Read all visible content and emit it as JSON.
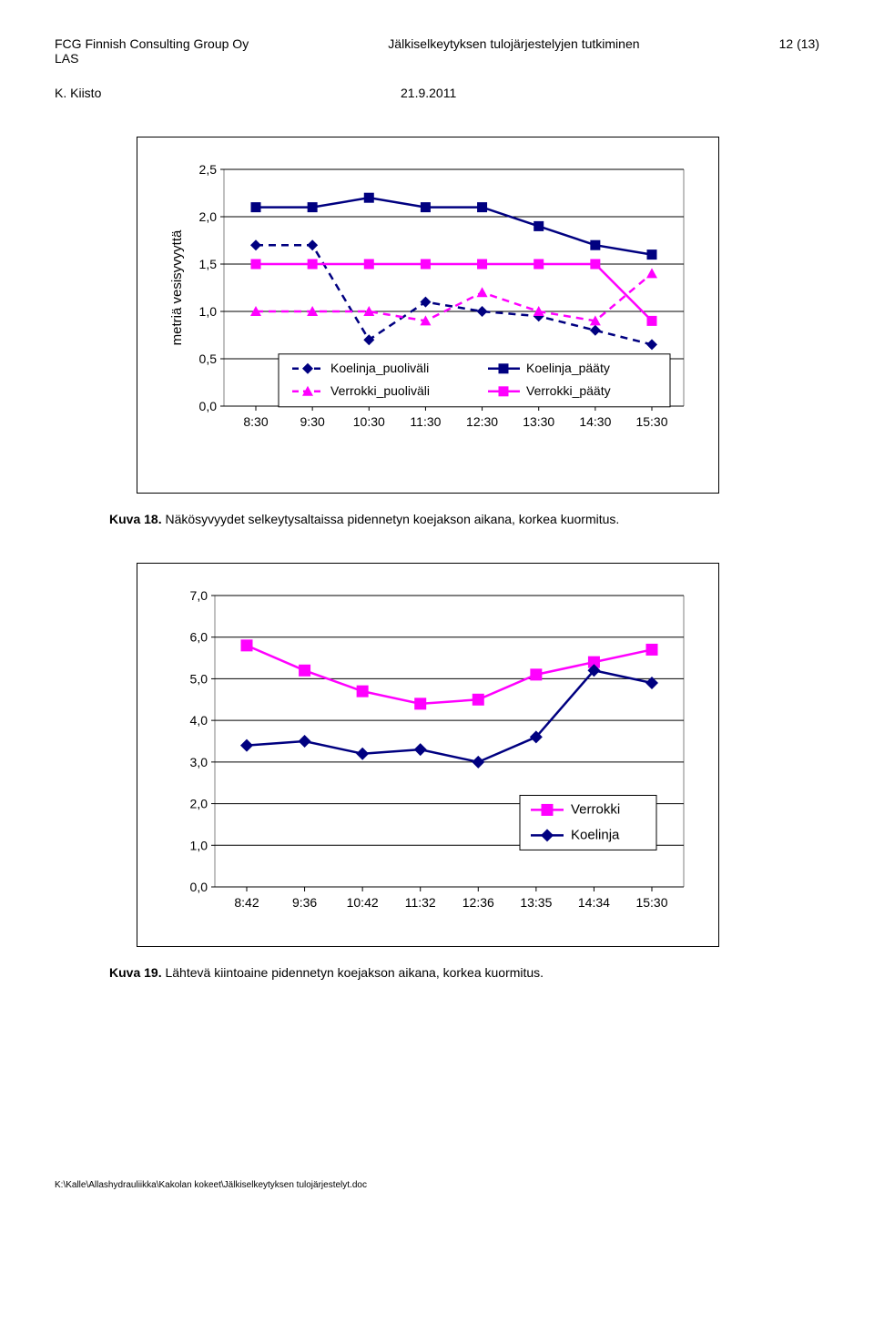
{
  "header": {
    "org": "FCG Finnish Consulting Group Oy",
    "org2": "LAS",
    "title": "Jälkiselkeytyksen tulojärjestelyjen tutkiminen",
    "page": "12 (13)",
    "author": "K. Kiisto",
    "date": "21.9.2011"
  },
  "chart1": {
    "type": "line",
    "ylabel": "metriä vesisyvyyttä",
    "yticks": [
      "0,0",
      "0,5",
      "1,0",
      "1,5",
      "2,0",
      "2,5"
    ],
    "ylim": [
      0,
      2.5
    ],
    "xcats": [
      "8:30",
      "9:30",
      "10:30",
      "11:30",
      "12:30",
      "13:30",
      "14:30",
      "15:30"
    ],
    "legend": [
      {
        "label": "Koelinja_puoliväli",
        "color": "#000080",
        "dash": true,
        "marker": "diamond"
      },
      {
        "label": "Koelinja_pääty",
        "color": "#000080",
        "dash": false,
        "marker": "square"
      },
      {
        "label": "Verrokki_puoliväli",
        "color": "#ff00ff",
        "dash": true,
        "marker": "triangle"
      },
      {
        "label": "Verrokki_pääty",
        "color": "#ff00ff",
        "dash": false,
        "marker": "square"
      }
    ],
    "series": {
      "koelinja_puolivali": {
        "color": "#000080",
        "dash": true,
        "marker": "diamond",
        "y": [
          1.7,
          1.7,
          0.7,
          1.1,
          1.0,
          0.95,
          0.8,
          0.65
        ]
      },
      "koelinja_paaty": {
        "color": "#000080",
        "dash": false,
        "marker": "square",
        "y": [
          2.1,
          2.1,
          2.2,
          2.1,
          2.1,
          1.9,
          1.7,
          1.6
        ]
      },
      "verrokki_puolivali": {
        "color": "#ff00ff",
        "dash": true,
        "marker": "triangle",
        "y": [
          1.0,
          1.0,
          1.0,
          0.9,
          1.2,
          1.0,
          0.9,
          1.4
        ]
      },
      "verrokki_paaty": {
        "color": "#ff00ff",
        "dash": false,
        "marker": "square",
        "y": [
          1.5,
          1.5,
          1.5,
          1.5,
          1.5,
          1.5,
          1.5,
          0.9
        ]
      }
    },
    "tick_font": 14,
    "label_font": 15,
    "grid_color": "#000000",
    "bg": "#ffffff"
  },
  "caption1_b": "Kuva 18.",
  "caption1": " Näkösyvyydet selkeytysaltaissa pidennetyn koejakson aikana, korkea kuormitus.",
  "chart2": {
    "type": "line",
    "yticks": [
      "0,0",
      "1,0",
      "2,0",
      "3,0",
      "4,0",
      "5,0",
      "6,0",
      "7,0"
    ],
    "ylim": [
      0,
      7
    ],
    "xcats": [
      "8:42",
      "9:36",
      "10:42",
      "11:32",
      "12:36",
      "13:35",
      "14:34",
      "15:30"
    ],
    "legend": [
      {
        "label": "Verrokki",
        "color": "#ff00ff",
        "marker": "square"
      },
      {
        "label": "Koelinja",
        "color": "#000080",
        "marker": "diamond"
      }
    ],
    "series": {
      "verrokki": {
        "color": "#ff00ff",
        "marker": "square",
        "y": [
          5.8,
          5.2,
          4.7,
          4.4,
          4.5,
          5.1,
          5.4,
          5.7
        ]
      },
      "koelinja": {
        "color": "#000080",
        "marker": "diamond",
        "y": [
          3.4,
          3.5,
          3.2,
          3.3,
          3.0,
          3.6,
          5.2,
          4.9
        ]
      }
    },
    "tick_font": 14,
    "grid_color": "#000000",
    "bg": "#ffffff"
  },
  "caption2_b": "Kuva 19.",
  "caption2": " Lähtevä kiintoaine pidennetyn koejakson aikana, korkea kuormitus.",
  "footer": "K:\\Kalle\\Allashydrauliikka\\Kakolan kokeet\\Jälkiselkeytyksen tulojärjestelyt.doc"
}
